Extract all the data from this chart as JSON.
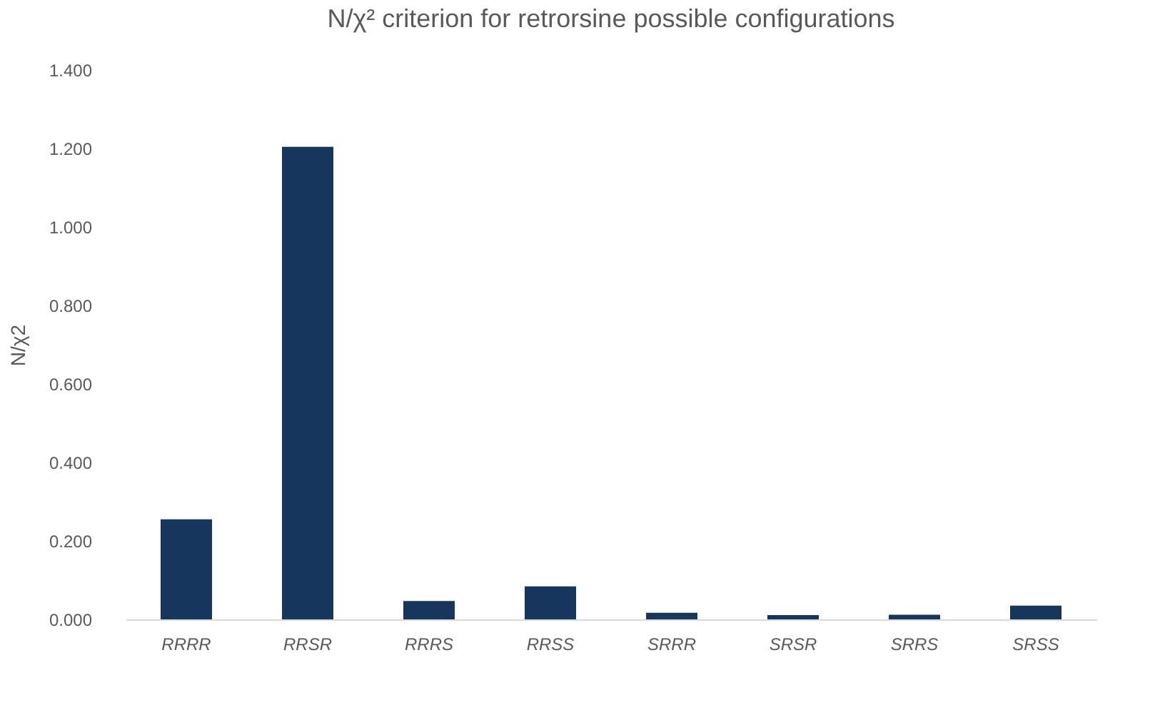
{
  "chart_data": {
    "type": "bar",
    "title": "N/χ² criterion for retrorsine possible configurations",
    "ylabel": "N/χ2",
    "categories": [
      "RRRR",
      "RRSR",
      "RRRS",
      "RRSS",
      "SRRR",
      "SRSR",
      "SRRS",
      "SRSS"
    ],
    "values": [
      0.255,
      1.204,
      0.047,
      0.084,
      0.017,
      0.011,
      0.012,
      0.035
    ],
    "color": "#17365d",
    "ylim": [
      0,
      1.4
    ],
    "yticks": [
      {
        "value": 0,
        "label": "0.000"
      },
      {
        "value": 0.2,
        "label": "0.200"
      },
      {
        "value": 0.4,
        "label": "0.400"
      },
      {
        "value": 0.6,
        "label": "0.600"
      },
      {
        "value": 0.8,
        "label": "0.800"
      },
      {
        "value": 1.0,
        "label": "1.000"
      },
      {
        "value": 1.2,
        "label": "1.200"
      },
      {
        "value": 1.4,
        "label": "1.400"
      }
    ],
    "grid": false
  }
}
